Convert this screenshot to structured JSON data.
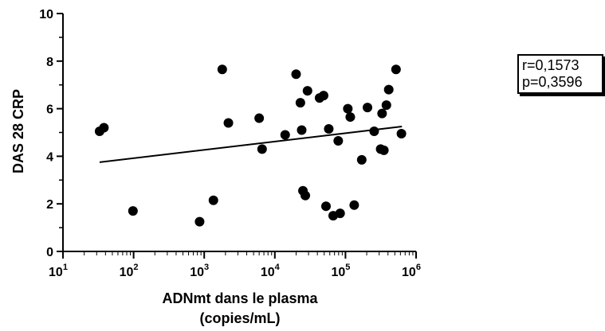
{
  "chart_data": {
    "type": "scatter",
    "title": "",
    "xlabel_lines": [
      "ADNmt dans le plasma",
      "(copies/mL)"
    ],
    "ylabel": "DAS 28 CRP",
    "x_scale": "log",
    "xlim": [
      10,
      1000000
    ],
    "ylim": [
      0,
      10
    ],
    "x_ticks": [
      {
        "base": "10",
        "exp": "1",
        "value": 10
      },
      {
        "base": "10",
        "exp": "2",
        "value": 100
      },
      {
        "base": "10",
        "exp": "3",
        "value": 1000
      },
      {
        "base": "10",
        "exp": "4",
        "value": 10000
      },
      {
        "base": "10",
        "exp": "5",
        "value": 100000
      },
      {
        "base": "10",
        "exp": "6",
        "value": 1000000
      }
    ],
    "y_ticks": [
      "0",
      "2",
      "4",
      "6",
      "8",
      "10"
    ],
    "grid": false,
    "points": [
      {
        "x": 33,
        "y": 5.05
      },
      {
        "x": 38,
        "y": 5.2
      },
      {
        "x": 98,
        "y": 1.7
      },
      {
        "x": 860,
        "y": 1.25
      },
      {
        "x": 1350,
        "y": 2.15
      },
      {
        "x": 1800,
        "y": 7.65
      },
      {
        "x": 2200,
        "y": 5.4
      },
      {
        "x": 6000,
        "y": 5.6
      },
      {
        "x": 6600,
        "y": 4.3
      },
      {
        "x": 14000,
        "y": 4.9
      },
      {
        "x": 20000,
        "y": 7.45
      },
      {
        "x": 23000,
        "y": 6.25
      },
      {
        "x": 24000,
        "y": 5.1
      },
      {
        "x": 25000,
        "y": 2.55
      },
      {
        "x": 27000,
        "y": 2.35
      },
      {
        "x": 29000,
        "y": 6.75
      },
      {
        "x": 43000,
        "y": 6.45
      },
      {
        "x": 49000,
        "y": 6.55
      },
      {
        "x": 53000,
        "y": 1.9
      },
      {
        "x": 58000,
        "y": 5.15
      },
      {
        "x": 67000,
        "y": 1.5
      },
      {
        "x": 79000,
        "y": 4.65
      },
      {
        "x": 84000,
        "y": 1.6
      },
      {
        "x": 108000,
        "y": 6.0
      },
      {
        "x": 117000,
        "y": 5.65
      },
      {
        "x": 133000,
        "y": 1.95
      },
      {
        "x": 170000,
        "y": 3.85
      },
      {
        "x": 205000,
        "y": 6.05
      },
      {
        "x": 255000,
        "y": 5.05
      },
      {
        "x": 315000,
        "y": 4.3
      },
      {
        "x": 350000,
        "y": 4.25
      },
      {
        "x": 330000,
        "y": 5.8
      },
      {
        "x": 380000,
        "y": 6.15
      },
      {
        "x": 410000,
        "y": 6.8
      },
      {
        "x": 520000,
        "y": 7.65
      },
      {
        "x": 620000,
        "y": 4.95
      }
    ],
    "trendline": {
      "x": [
        33,
        630000
      ],
      "y": [
        3.75,
        5.25
      ]
    },
    "stats": {
      "r": "r=0,1573",
      "p": "p=0,3596"
    }
  }
}
